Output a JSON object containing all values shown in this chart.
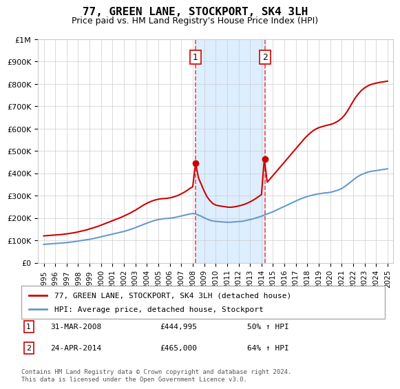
{
  "title": "77, GREEN LANE, STOCKPORT, SK4 3LH",
  "subtitle": "Price paid vs. HM Land Registry's House Price Index (HPI)",
  "legend_line1": "77, GREEN LANE, STOCKPORT, SK4 3LH (detached house)",
  "legend_line2": "HPI: Average price, detached house, Stockport",
  "footnote": "Contains HM Land Registry data © Crown copyright and database right 2024.\nThis data is licensed under the Open Government Licence v3.0.",
  "sale1_label": "1",
  "sale1_date": "31-MAR-2008",
  "sale1_price": "£444,995",
  "sale1_hpi": "50% ↑ HPI",
  "sale2_label": "2",
  "sale2_date": "24-APR-2014",
  "sale2_price": "£465,000",
  "sale2_hpi": "64% ↑ HPI",
  "sale1_x": 2008.25,
  "sale1_y": 444995,
  "sale2_x": 2014.31,
  "sale2_y": 465000,
  "ylim": [
    0,
    1000000
  ],
  "xlim": [
    1994.5,
    2025.5
  ],
  "yticks": [
    0,
    100000,
    200000,
    300000,
    400000,
    500000,
    600000,
    700000,
    800000,
    900000,
    1000000
  ],
  "ytick_labels": [
    "£0",
    "£100K",
    "£200K",
    "£300K",
    "£400K",
    "£500K",
    "£600K",
    "£700K",
    "£800K",
    "£900K",
    "£1M"
  ],
  "xticks": [
    1995,
    1996,
    1997,
    1998,
    1999,
    2000,
    2001,
    2002,
    2003,
    2004,
    2005,
    2006,
    2007,
    2008,
    2009,
    2010,
    2011,
    2012,
    2013,
    2014,
    2015,
    2016,
    2017,
    2018,
    2019,
    2020,
    2021,
    2022,
    2023,
    2024,
    2025
  ],
  "red_color": "#cc0000",
  "blue_color": "#6699cc",
  "shade_color": "#ddeeff",
  "vline_color": "#ff4444",
  "background_color": "#ffffff",
  "grid_color": "#cccccc",
  "hpi_x": [
    1995,
    1995.25,
    1995.5,
    1995.75,
    1996,
    1996.25,
    1996.5,
    1996.75,
    1997,
    1997.25,
    1997.5,
    1997.75,
    1998,
    1998.25,
    1998.5,
    1998.75,
    1999,
    1999.25,
    1999.5,
    1999.75,
    2000,
    2000.25,
    2000.5,
    2000.75,
    2001,
    2001.25,
    2001.5,
    2001.75,
    2002,
    2002.25,
    2002.5,
    2002.75,
    2003,
    2003.25,
    2003.5,
    2003.75,
    2004,
    2004.25,
    2004.5,
    2004.75,
    2005,
    2005.25,
    2005.5,
    2005.75,
    2006,
    2006.25,
    2006.5,
    2006.75,
    2007,
    2007.25,
    2007.5,
    2007.75,
    2008,
    2008.25,
    2008.5,
    2008.75,
    2009,
    2009.25,
    2009.5,
    2009.75,
    2010,
    2010.25,
    2010.5,
    2010.75,
    2011,
    2011.25,
    2011.5,
    2011.75,
    2012,
    2012.25,
    2012.5,
    2012.75,
    2013,
    2013.25,
    2013.5,
    2013.75,
    2014,
    2014.25,
    2014.5,
    2014.75,
    2015,
    2015.25,
    2015.5,
    2015.75,
    2016,
    2016.25,
    2016.5,
    2016.75,
    2017,
    2017.25,
    2017.5,
    2017.75,
    2018,
    2018.25,
    2018.5,
    2018.75,
    2019,
    2019.25,
    2019.5,
    2019.75,
    2020,
    2020.25,
    2020.5,
    2020.75,
    2021,
    2021.25,
    2021.5,
    2021.75,
    2022,
    2022.25,
    2022.5,
    2022.75,
    2023,
    2023.25,
    2023.5,
    2023.75,
    2024,
    2024.25,
    2024.5,
    2024.75,
    2025
  ],
  "hpi_y": [
    82000,
    83000,
    84000,
    85000,
    86000,
    87000,
    88000,
    89000,
    90000,
    91500,
    93000,
    95000,
    97000,
    99000,
    101000,
    103000,
    105000,
    107000,
    110000,
    113000,
    116000,
    119000,
    122000,
    125000,
    128000,
    131000,
    134000,
    137000,
    140000,
    144000,
    148000,
    152000,
    157000,
    162000,
    167000,
    172000,
    177000,
    182000,
    186000,
    190000,
    193000,
    195000,
    197000,
    198000,
    199000,
    201000,
    203000,
    206000,
    209000,
    212000,
    215000,
    218000,
    220000,
    218000,
    213000,
    208000,
    201000,
    195000,
    190000,
    187000,
    185000,
    184000,
    183000,
    182000,
    181000,
    181000,
    182000,
    183000,
    184000,
    185000,
    187000,
    190000,
    193000,
    196000,
    200000,
    204000,
    208000,
    213000,
    218000,
    223000,
    228000,
    234000,
    240000,
    246000,
    252000,
    258000,
    264000,
    270000,
    276000,
    282000,
    287000,
    292000,
    296000,
    300000,
    303000,
    306000,
    308000,
    310000,
    312000,
    313000,
    315000,
    318000,
    322000,
    326000,
    332000,
    340000,
    350000,
    360000,
    370000,
    380000,
    388000,
    395000,
    400000,
    405000,
    408000,
    410000,
    412000,
    414000,
    416000,
    418000,
    420000
  ],
  "red_x": [
    1995,
    1995.25,
    1995.5,
    1995.75,
    1996,
    1996.25,
    1996.5,
    1996.75,
    1997,
    1997.25,
    1997.5,
    1997.75,
    1998,
    1998.25,
    1998.5,
    1998.75,
    1999,
    1999.25,
    1999.5,
    1999.75,
    2000,
    2000.25,
    2000.5,
    2000.75,
    2001,
    2001.25,
    2001.5,
    2001.75,
    2002,
    2002.25,
    2002.5,
    2002.75,
    2003,
    2003.25,
    2003.5,
    2003.75,
    2004,
    2004.25,
    2004.5,
    2004.75,
    2005,
    2005.25,
    2005.5,
    2005.75,
    2006,
    2006.25,
    2006.5,
    2006.75,
    2007,
    2007.25,
    2007.5,
    2007.75,
    2008,
    2008.25,
    2008.5,
    2008.75,
    2009,
    2009.25,
    2009.5,
    2009.75,
    2010,
    2010.25,
    2010.5,
    2010.75,
    2011,
    2011.25,
    2011.5,
    2011.75,
    2012,
    2012.25,
    2012.5,
    2012.75,
    2013,
    2013.25,
    2013.5,
    2013.75,
    2014,
    2014.25,
    2014.5,
    2014.75,
    2015,
    2015.25,
    2015.5,
    2015.75,
    2016,
    2016.25,
    2016.5,
    2016.75,
    2017,
    2017.25,
    2017.5,
    2017.75,
    2018,
    2018.25,
    2018.5,
    2018.75,
    2019,
    2019.25,
    2019.5,
    2019.75,
    2020,
    2020.25,
    2020.5,
    2020.75,
    2021,
    2021.25,
    2021.5,
    2021.75,
    2022,
    2022.25,
    2022.5,
    2022.75,
    2023,
    2023.25,
    2023.5,
    2023.75,
    2024,
    2024.25,
    2024.5,
    2024.75,
    2025
  ],
  "red_y": [
    120000,
    121000,
    122000,
    123000,
    124000,
    125000,
    126000,
    127500,
    129000,
    131000,
    133000,
    135000,
    138000,
    141000,
    144000,
    147000,
    151000,
    155000,
    159000,
    163000,
    168000,
    173000,
    178000,
    183000,
    188000,
    193000,
    198000,
    203000,
    209000,
    215000,
    221000,
    228000,
    235000,
    243000,
    251000,
    259000,
    266000,
    272000,
    277000,
    281000,
    284000,
    286000,
    287000,
    288000,
    290000,
    293000,
    297000,
    302000,
    308000,
    315000,
    323000,
    332000,
    340000,
    444995,
    380000,
    350000,
    320000,
    295000,
    278000,
    265000,
    258000,
    255000,
    253000,
    251000,
    249000,
    248000,
    249000,
    251000,
    254000,
    257000,
    261000,
    266000,
    272000,
    279000,
    287000,
    296000,
    305000,
    465000,
    360000,
    375000,
    390000,
    405000,
    420000,
    435000,
    450000,
    465000,
    480000,
    495000,
    510000,
    525000,
    540000,
    555000,
    568000,
    580000,
    590000,
    598000,
    604000,
    608000,
    612000,
    615000,
    618000,
    622000,
    628000,
    636000,
    646000,
    660000,
    678000,
    700000,
    722000,
    742000,
    758000,
    772000,
    782000,
    790000,
    796000,
    800000,
    803000,
    806000,
    808000,
    810000,
    812000
  ]
}
